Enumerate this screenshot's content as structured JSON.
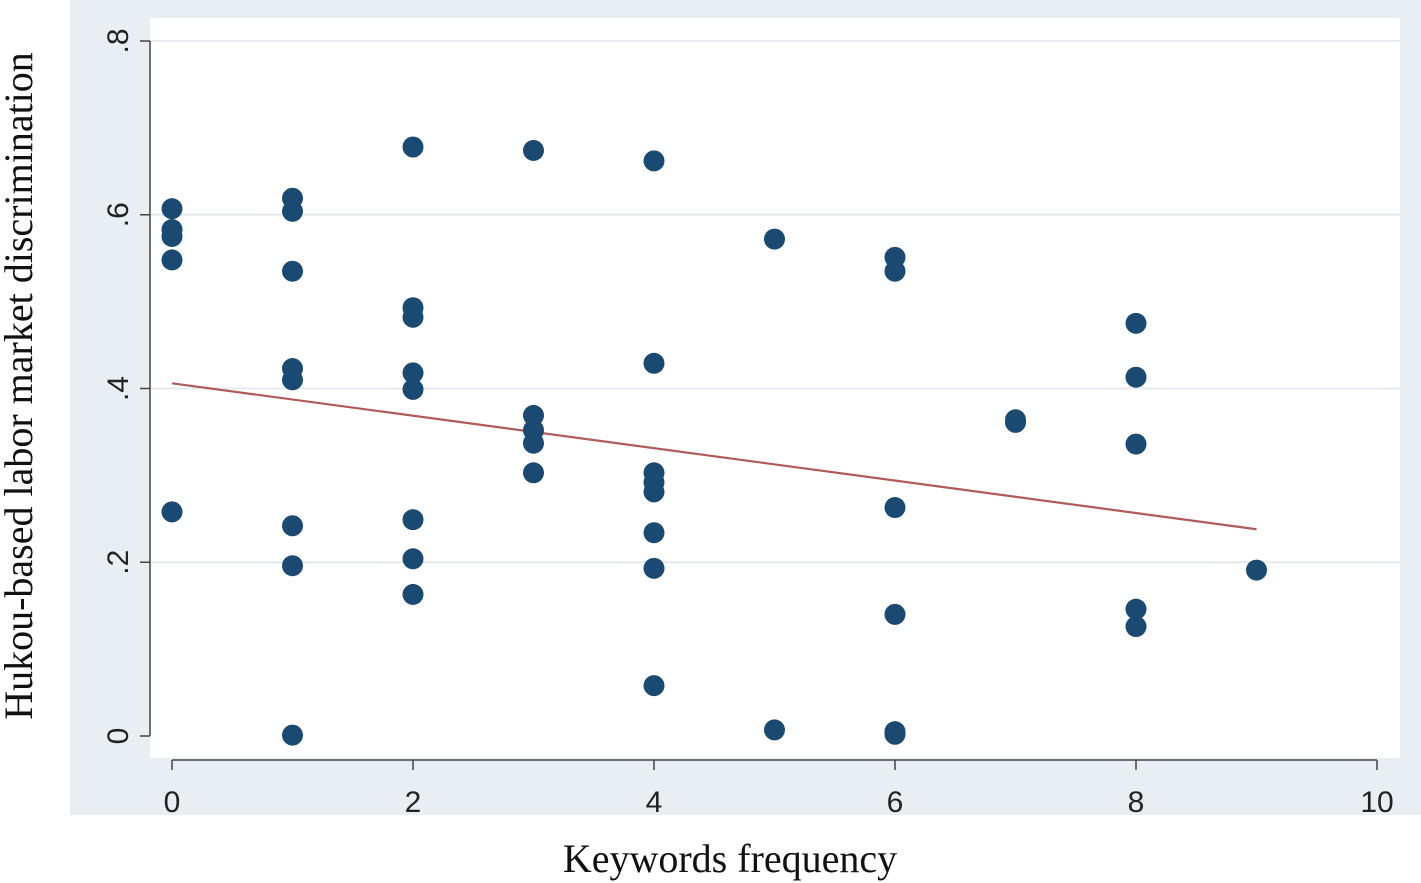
{
  "chart_data": {
    "type": "scatter",
    "xlabel": "Keywords frequency",
    "ylabel": "Hukou-based labor market discrimination",
    "xlim": [
      0,
      10
    ],
    "ylim": [
      0,
      0.8
    ],
    "xticks": [
      0,
      2,
      4,
      6,
      8,
      10
    ],
    "xtick_labels": [
      "0",
      "2",
      "4",
      "6",
      "8",
      "10"
    ],
    "yticks": [
      0,
      0.2,
      0.4,
      0.6,
      0.8
    ],
    "ytick_labels": [
      "0",
      ".2",
      ".4",
      ".6",
      ".8"
    ],
    "grid": "horizontal",
    "colors": {
      "outer_background": "#e9eef2",
      "plot_background": "#ffffff",
      "marker": "#1a4a72",
      "fit_line": "#b05a5a",
      "grid": "#e6eaee",
      "axis": "#444444"
    },
    "series": [
      {
        "type": "scatter",
        "points": [
          {
            "x": 0,
            "y": 0.607
          },
          {
            "x": 0,
            "y": 0.583
          },
          {
            "x": 0,
            "y": 0.575
          },
          {
            "x": 0,
            "y": 0.548
          },
          {
            "x": 0,
            "y": 0.258
          },
          {
            "x": 1,
            "y": 0.619
          },
          {
            "x": 1,
            "y": 0.604
          },
          {
            "x": 1,
            "y": 0.535
          },
          {
            "x": 1,
            "y": 0.423
          },
          {
            "x": 1,
            "y": 0.41
          },
          {
            "x": 1,
            "y": 0.242
          },
          {
            "x": 1,
            "y": 0.196
          },
          {
            "x": 1,
            "y": 0.001
          },
          {
            "x": 2,
            "y": 0.678
          },
          {
            "x": 2,
            "y": 0.493
          },
          {
            "x": 2,
            "y": 0.482
          },
          {
            "x": 2,
            "y": 0.418
          },
          {
            "x": 2,
            "y": 0.399
          },
          {
            "x": 2,
            "y": 0.249
          },
          {
            "x": 2,
            "y": 0.204
          },
          {
            "x": 2,
            "y": 0.163
          },
          {
            "x": 3,
            "y": 0.674
          },
          {
            "x": 3,
            "y": 0.369
          },
          {
            "x": 3,
            "y": 0.352
          },
          {
            "x": 3,
            "y": 0.337
          },
          {
            "x": 3,
            "y": 0.303
          },
          {
            "x": 4,
            "y": 0.662
          },
          {
            "x": 4,
            "y": 0.429
          },
          {
            "x": 4,
            "y": 0.303
          },
          {
            "x": 4,
            "y": 0.292
          },
          {
            "x": 4,
            "y": 0.281
          },
          {
            "x": 4,
            "y": 0.234
          },
          {
            "x": 4,
            "y": 0.193
          },
          {
            "x": 4,
            "y": 0.058
          },
          {
            "x": 5,
            "y": 0.572
          },
          {
            "x": 5,
            "y": 0.007
          },
          {
            "x": 6,
            "y": 0.551
          },
          {
            "x": 6,
            "y": 0.535
          },
          {
            "x": 6,
            "y": 0.263
          },
          {
            "x": 6,
            "y": 0.14
          },
          {
            "x": 6,
            "y": 0.005
          },
          {
            "x": 6,
            "y": 0.002
          },
          {
            "x": 7,
            "y": 0.364
          },
          {
            "x": 7,
            "y": 0.361
          },
          {
            "x": 8,
            "y": 0.475
          },
          {
            "x": 8,
            "y": 0.413
          },
          {
            "x": 8,
            "y": 0.336
          },
          {
            "x": 8,
            "y": 0.146
          },
          {
            "x": 8,
            "y": 0.126
          },
          {
            "x": 9,
            "y": 0.191
          }
        ]
      },
      {
        "type": "line",
        "points": [
          {
            "x": 0,
            "y": 0.406
          },
          {
            "x": 9,
            "y": 0.238
          }
        ]
      }
    ]
  }
}
